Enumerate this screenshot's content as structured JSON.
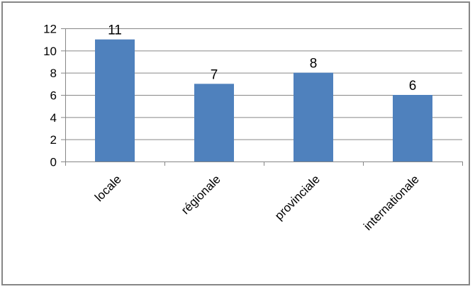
{
  "chart_data": {
    "type": "bar",
    "title": "",
    "xlabel": "",
    "ylabel": "",
    "categories": [
      "locale",
      "régionale",
      "provinciale",
      "internationale"
    ],
    "values": [
      11,
      7,
      8,
      6
    ],
    "ylim": [
      0,
      12
    ],
    "yticks": [
      0,
      2,
      4,
      6,
      8,
      10,
      12
    ],
    "grid": true,
    "legend": "none",
    "data_labels": true,
    "bar_color": "#4F81BD",
    "grid_color": "#868686"
  }
}
